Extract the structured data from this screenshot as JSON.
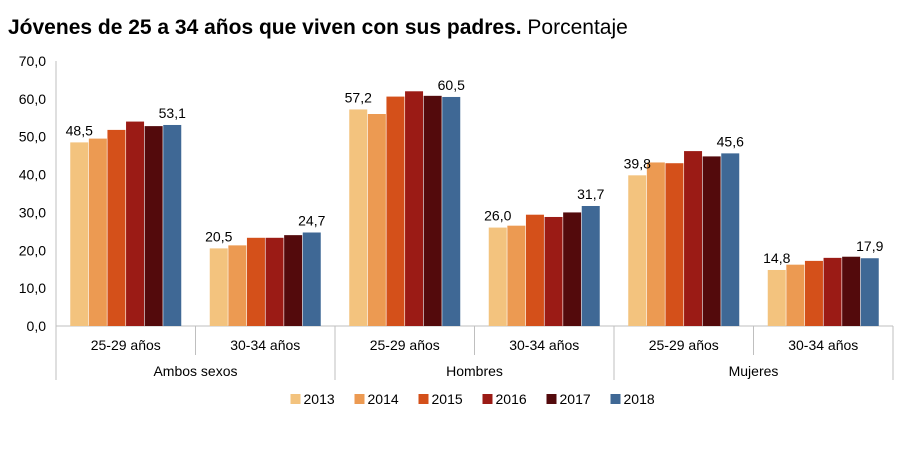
{
  "chart_title": "Jóvenes de 25 a 34 años que viven con sus padres.",
  "chart_subtitle": "Porcentaje",
  "chart_data": {
    "type": "bar",
    "title": "Jóvenes de 25 a 34 años que viven con sus padres.",
    "subtitle": "Porcentaje",
    "ylim": [
      0,
      70
    ],
    "y_ticks": [
      "0,0",
      "10,0",
      "20,0",
      "30,0",
      "40,0",
      "50,0",
      "60,0",
      "70,0"
    ],
    "grid": false,
    "legend_position": "bottom",
    "groups": [
      {
        "name": "Ambos sexos",
        "categories": [
          "25-29 años",
          "30-34 años"
        ]
      },
      {
        "name": "Hombres",
        "categories": [
          "25-29 años",
          "30-34 años"
        ]
      },
      {
        "name": "Mujeres",
        "categories": [
          "25-29 años",
          "30-34 años"
        ]
      }
    ],
    "categories": [
      "25-29 años",
      "30-34 años",
      "25-29 años",
      "30-34 años",
      "25-29 años",
      "30-34 años"
    ],
    "series": [
      {
        "name": "2013",
        "color": "#F3C37E",
        "values": [
          48.5,
          20.5,
          57.2,
          26.0,
          39.8,
          14.8
        ]
      },
      {
        "name": "2014",
        "color": "#EC9A52",
        "values": [
          49.5,
          21.3,
          56.0,
          26.5,
          43.2,
          16.2
        ]
      },
      {
        "name": "2015",
        "color": "#D4501A",
        "values": [
          51.8,
          23.3,
          60.6,
          29.4,
          43.0,
          17.2
        ]
      },
      {
        "name": "2016",
        "color": "#9B1B15",
        "values": [
          54.0,
          23.3,
          62.0,
          28.8,
          46.2,
          18.0
        ]
      },
      {
        "name": "2017",
        "color": "#530A0C",
        "values": [
          52.8,
          24.0,
          60.8,
          30.0,
          44.8,
          18.3
        ]
      },
      {
        "name": "2018",
        "color": "#3F6895",
        "values": [
          53.1,
          24.7,
          60.5,
          31.7,
          45.6,
          17.9
        ]
      }
    ],
    "data_labels": [
      {
        "category_index": 0,
        "series_index": 0,
        "text": "48,5"
      },
      {
        "category_index": 0,
        "series_index": 5,
        "text": "53,1"
      },
      {
        "category_index": 1,
        "series_index": 0,
        "text": "20,5"
      },
      {
        "category_index": 1,
        "series_index": 5,
        "text": "24,7"
      },
      {
        "category_index": 2,
        "series_index": 0,
        "text": "57,2"
      },
      {
        "category_index": 2,
        "series_index": 5,
        "text": "60,5"
      },
      {
        "category_index": 3,
        "series_index": 0,
        "text": "26,0"
      },
      {
        "category_index": 3,
        "series_index": 5,
        "text": "31,7"
      },
      {
        "category_index": 4,
        "series_index": 0,
        "text": "39,8"
      },
      {
        "category_index": 4,
        "series_index": 5,
        "text": "45,6"
      },
      {
        "category_index": 5,
        "series_index": 0,
        "text": "14,8"
      },
      {
        "category_index": 5,
        "series_index": 5,
        "text": "17,9"
      }
    ]
  }
}
